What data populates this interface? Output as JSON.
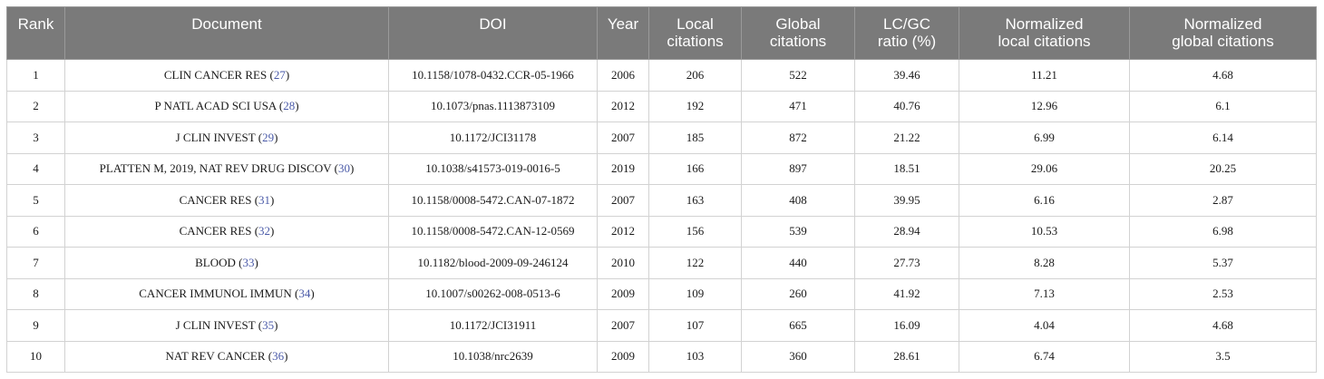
{
  "table": {
    "headers": [
      [
        "Rank"
      ],
      [
        "Document"
      ],
      [
        "DOI"
      ],
      [
        "Year"
      ],
      [
        "Local",
        "citations"
      ],
      [
        "Global",
        "citations"
      ],
      [
        "LC/GC",
        "ratio (%)"
      ],
      [
        "Normalized",
        "local citations"
      ],
      [
        "Normalized",
        "global citations"
      ]
    ],
    "rows": [
      {
        "rank": "1",
        "document": "CLIN CANCER RES",
        "ref": "27",
        "doi": "10.1158/1078-0432.CCR-05-1966",
        "year": "2006",
        "local": "206",
        "global": "522",
        "ratio": "39.46",
        "norm_local": "11.21",
        "norm_global": "4.68"
      },
      {
        "rank": "2",
        "document": "P NATL ACAD SCI USA",
        "ref": "28",
        "doi": "10.1073/pnas.1113873109",
        "year": "2012",
        "local": "192",
        "global": "471",
        "ratio": "40.76",
        "norm_local": "12.96",
        "norm_global": "6.1"
      },
      {
        "rank": "3",
        "document": "J CLIN INVEST",
        "ref": "29",
        "doi": "10.1172/JCI31178",
        "year": "2007",
        "local": "185",
        "global": "872",
        "ratio": "21.22",
        "norm_local": "6.99",
        "norm_global": "6.14"
      },
      {
        "rank": "4",
        "document": "PLATTEN M, 2019, NAT REV DRUG DISCOV",
        "ref": "30",
        "doi": "10.1038/s41573-019-0016-5",
        "year": "2019",
        "local": "166",
        "global": "897",
        "ratio": "18.51",
        "norm_local": "29.06",
        "norm_global": "20.25"
      },
      {
        "rank": "5",
        "document": "CANCER RES",
        "ref": "31",
        "doi": "10.1158/0008-5472.CAN-07-1872",
        "year": "2007",
        "local": "163",
        "global": "408",
        "ratio": "39.95",
        "norm_local": "6.16",
        "norm_global": "2.87"
      },
      {
        "rank": "6",
        "document": "CANCER RES",
        "ref": "32",
        "doi": "10.1158/0008-5472.CAN-12-0569",
        "year": "2012",
        "local": "156",
        "global": "539",
        "ratio": "28.94",
        "norm_local": "10.53",
        "norm_global": "6.98"
      },
      {
        "rank": "7",
        "document": "BLOOD",
        "ref": "33",
        "doi": "10.1182/blood-2009-09-246124",
        "year": "2010",
        "local": "122",
        "global": "440",
        "ratio": "27.73",
        "norm_local": "8.28",
        "norm_global": "5.37"
      },
      {
        "rank": "8",
        "document": "CANCER IMMUNOL IMMUN",
        "ref": "34",
        "doi": "10.1007/s00262-008-0513-6",
        "year": "2009",
        "local": "109",
        "global": "260",
        "ratio": "41.92",
        "norm_local": "7.13",
        "norm_global": "2.53"
      },
      {
        "rank": "9",
        "document": "J CLIN INVEST",
        "ref": "35",
        "doi": "10.1172/JCI31911",
        "year": "2007",
        "local": "107",
        "global": "665",
        "ratio": "16.09",
        "norm_local": "4.04",
        "norm_global": "4.68"
      },
      {
        "rank": "10",
        "document": "NAT REV CANCER",
        "ref": "36",
        "doi": "10.1038/nrc2639",
        "year": "2009",
        "local": "103",
        "global": "360",
        "ratio": "28.61",
        "norm_local": "6.74",
        "norm_global": "3.5"
      }
    ]
  }
}
